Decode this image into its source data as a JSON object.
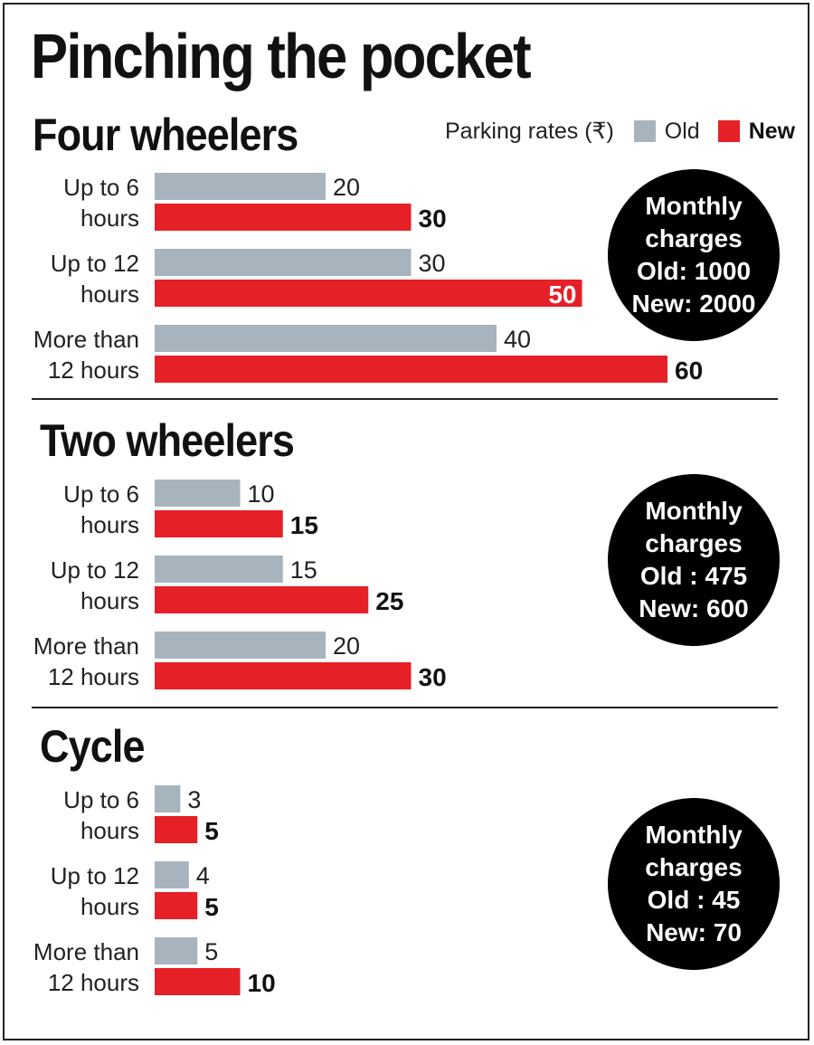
{
  "title": "Pinching the pocket",
  "legend": {
    "label": "Parking rates (₹)",
    "old": "Old",
    "new": "New"
  },
  "colors": {
    "old": "#a7b4bd",
    "new": "#e52026",
    "badge": "#000000"
  },
  "sections": [
    {
      "name": "Four wheelers",
      "monthly": {
        "line1": "Monthly",
        "line2": "charges",
        "old": "Old: 1000",
        "new": "New: 2000"
      }
    },
    {
      "name": "Two wheelers",
      "monthly": {
        "line1": "Monthly",
        "line2": "charges",
        "old": "Old : 475",
        "new": "New: 600"
      }
    },
    {
      "name": "Cycle",
      "monthly": {
        "line1": "Monthly",
        "line2": "charges",
        "old": "Old : 45",
        "new": "New: 70"
      }
    }
  ],
  "chart_data": [
    {
      "type": "bar",
      "title": "Four wheelers",
      "categories": [
        [
          "Up to 6",
          "hours"
        ],
        [
          "Up to 12",
          "hours"
        ],
        [
          "More than",
          "12 hours"
        ]
      ],
      "series": [
        {
          "name": "Old",
          "values": [
            20,
            30,
            40
          ]
        },
        {
          "name": "New",
          "values": [
            30,
            50,
            60
          ]
        }
      ]
    },
    {
      "type": "bar",
      "title": "Two wheelers",
      "categories": [
        [
          "Up to 6",
          "hours"
        ],
        [
          "Up to 12",
          "hours"
        ],
        [
          "More than",
          "12 hours"
        ]
      ],
      "series": [
        {
          "name": "Old",
          "values": [
            10,
            15,
            20
          ]
        },
        {
          "name": "New",
          "values": [
            15,
            25,
            30
          ]
        }
      ]
    },
    {
      "type": "bar",
      "title": "Cycle",
      "categories": [
        [
          "Up to 6",
          "hours"
        ],
        [
          "Up to 12",
          "hours"
        ],
        [
          "More than",
          "12 hours"
        ]
      ],
      "series": [
        {
          "name": "Old",
          "values": [
            3,
            4,
            5
          ]
        },
        {
          "name": "New",
          "values": [
            5,
            5,
            10
          ]
        }
      ]
    }
  ]
}
